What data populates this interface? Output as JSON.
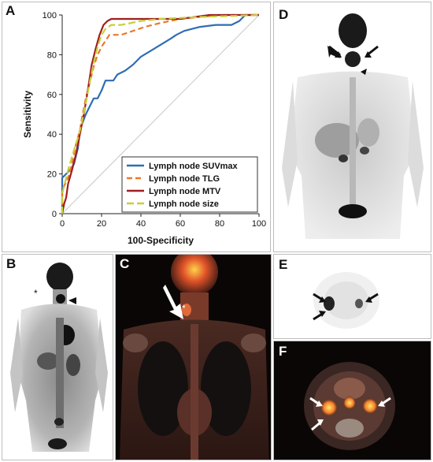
{
  "panels": {
    "a": "A",
    "b": "B",
    "c": "C",
    "d": "D",
    "e": "E",
    "f": "F"
  },
  "chart_data": {
    "type": "line",
    "xlabel": "100-Specificity",
    "ylabel": "Sensitivity",
    "xlim": [
      0,
      100
    ],
    "ylim": [
      0,
      100
    ],
    "xticks": [
      0,
      20,
      40,
      60,
      80,
      100
    ],
    "yticks": [
      0,
      20,
      40,
      60,
      80,
      100
    ],
    "legend_position": "bottom-right",
    "grid": false,
    "reference_line": true,
    "series": [
      {
        "name": "Lymph node SUVmax",
        "color": "#2f6db5",
        "dash": "",
        "points": [
          [
            0,
            0
          ],
          [
            0,
            18
          ],
          [
            2,
            20
          ],
          [
            4,
            22
          ],
          [
            6,
            25
          ],
          [
            8,
            33
          ],
          [
            9,
            42
          ],
          [
            10,
            45
          ],
          [
            12,
            50
          ],
          [
            14,
            54
          ],
          [
            16,
            58
          ],
          [
            18,
            58
          ],
          [
            20,
            62
          ],
          [
            22,
            67
          ],
          [
            26,
            67
          ],
          [
            28,
            70
          ],
          [
            32,
            72
          ],
          [
            36,
            75
          ],
          [
            40,
            79
          ],
          [
            45,
            82
          ],
          [
            50,
            85
          ],
          [
            55,
            88
          ],
          [
            58,
            90
          ],
          [
            62,
            92
          ],
          [
            70,
            94
          ],
          [
            78,
            95
          ],
          [
            86,
            95
          ],
          [
            90,
            97
          ],
          [
            93,
            100
          ],
          [
            100,
            100
          ]
        ]
      },
      {
        "name": "Lymph node TLG",
        "color": "#e87a2a",
        "dash": "7,4",
        "points": [
          [
            0,
            0
          ],
          [
            0,
            12
          ],
          [
            3,
            18
          ],
          [
            5,
            25
          ],
          [
            7,
            35
          ],
          [
            9,
            42
          ],
          [
            10,
            48
          ],
          [
            12,
            58
          ],
          [
            14,
            66
          ],
          [
            16,
            74
          ],
          [
            18,
            80
          ],
          [
            20,
            84
          ],
          [
            22,
            87
          ],
          [
            24,
            90
          ],
          [
            30,
            90
          ],
          [
            36,
            92
          ],
          [
            42,
            94
          ],
          [
            50,
            96
          ],
          [
            60,
            98
          ],
          [
            70,
            99
          ],
          [
            80,
            100
          ],
          [
            100,
            100
          ]
        ]
      },
      {
        "name": "Lymph node MTV",
        "color": "#a01e1e",
        "dash": "",
        "points": [
          [
            0,
            0
          ],
          [
            1,
            5
          ],
          [
            2,
            8
          ],
          [
            3,
            15
          ],
          [
            5,
            22
          ],
          [
            7,
            30
          ],
          [
            9,
            40
          ],
          [
            11,
            50
          ],
          [
            13,
            62
          ],
          [
            15,
            75
          ],
          [
            17,
            83
          ],
          [
            19,
            90
          ],
          [
            21,
            95
          ],
          [
            23,
            97
          ],
          [
            25,
            98
          ],
          [
            60,
            98
          ],
          [
            75,
            100
          ],
          [
            100,
            100
          ]
        ]
      },
      {
        "name": "Lymph node size",
        "color": "#c6cf3b",
        "dash": "9,4",
        "points": [
          [
            0,
            0
          ],
          [
            0,
            10
          ],
          [
            3,
            22
          ],
          [
            6,
            32
          ],
          [
            8,
            38
          ],
          [
            10,
            46
          ],
          [
            12,
            56
          ],
          [
            14,
            66
          ],
          [
            16,
            76
          ],
          [
            18,
            84
          ],
          [
            20,
            90
          ],
          [
            22,
            93
          ],
          [
            25,
            95
          ],
          [
            30,
            95
          ],
          [
            40,
            97
          ],
          [
            50,
            98
          ],
          [
            70,
            99
          ],
          [
            100,
            100
          ]
        ]
      }
    ]
  },
  "colors": {
    "pet_bg": "#ffffff",
    "pet_uptake": "#101010",
    "fusion_bg": "#0a0605",
    "fusion_hot": "#ffd24a"
  }
}
